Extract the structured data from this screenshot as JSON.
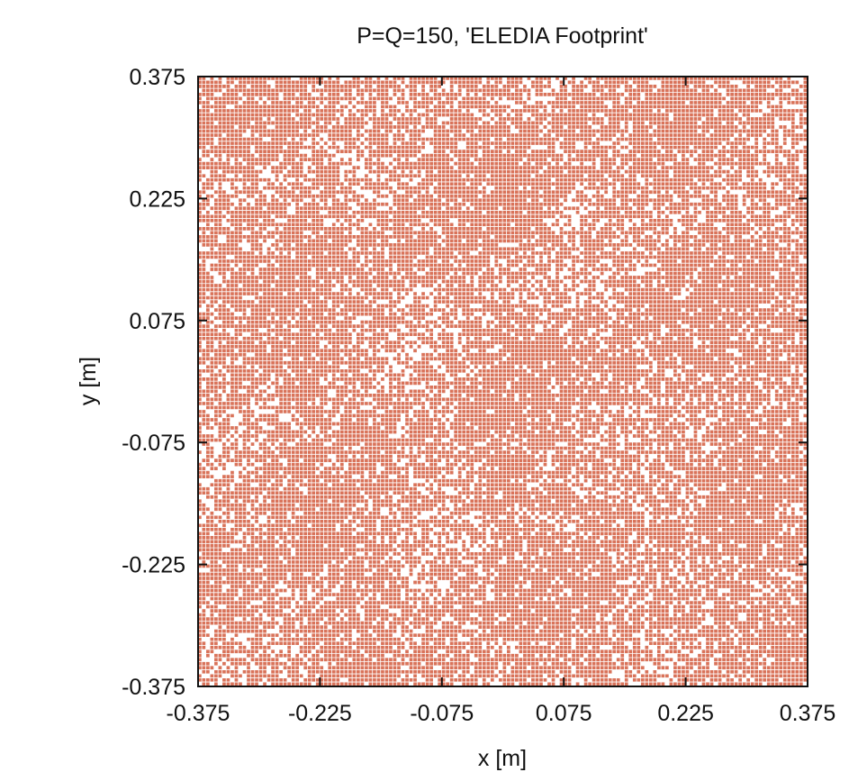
{
  "chart_data": {
    "type": "scatter",
    "title": "P=Q=150, 'ELEDIA Footprint'",
    "xlabel": "x [m]",
    "ylabel": "y [m]",
    "xlim": [
      -0.375,
      0.375
    ],
    "ylim": [
      -0.375,
      0.375
    ],
    "x_ticks": [
      -0.375,
      -0.225,
      -0.075,
      0.075,
      0.225,
      0.375
    ],
    "y_ticks": [
      -0.375,
      -0.225,
      -0.075,
      0.075,
      0.225,
      0.375
    ],
    "x_tick_labels": [
      "-0.375",
      "-0.225",
      "-0.075",
      "0.075",
      "0.225",
      "0.375"
    ],
    "y_tick_labels": [
      "-0.375",
      "-0.225",
      "-0.075",
      "0.075",
      "0.225",
      "0.375"
    ],
    "grid": false,
    "lattice": {
      "P": 150,
      "Q": 150
    },
    "marker": "square",
    "element_color": "#d9735a",
    "frame_color": "#111111",
    "background_color": "#ffffff"
  }
}
